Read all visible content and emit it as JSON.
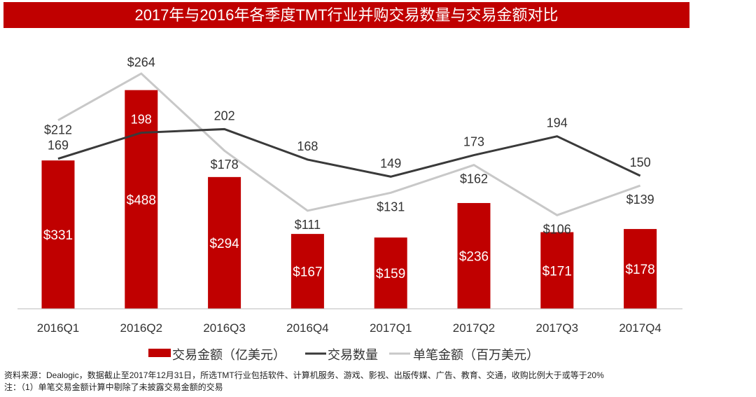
{
  "title": "2017年与2016年各季度TMT行业并购交易数量与交易金额对比",
  "chart_data": {
    "type": "bar+line",
    "title": "2017年与2016年各季度TMT行业并购交易数量与交易金额对比",
    "categories": [
      "2016Q1",
      "2016Q2",
      "2016Q3",
      "2016Q4",
      "2017Q1",
      "2017Q2",
      "2017Q3",
      "2017Q4"
    ],
    "series": [
      {
        "name": "交易金额（亿美元）",
        "type": "bar",
        "color": "#c00000",
        "values": [
          331,
          488,
          294,
          167,
          159,
          236,
          171,
          178
        ],
        "labels": [
          "$331",
          "$488",
          "$294",
          "$167",
          "$159",
          "$236",
          "$171",
          "$178"
        ]
      },
      {
        "name": "交易数量",
        "type": "line",
        "color": "#3a3a3a",
        "values": [
          169,
          198,
          202,
          168,
          149,
          173,
          194,
          150
        ],
        "labels": [
          "169",
          "198",
          "202",
          "168",
          "149",
          "173",
          "194",
          "150"
        ]
      },
      {
        "name": "单笔金额（百万美元）",
        "type": "line",
        "color": "#c8c8c8",
        "values": [
          212,
          264,
          178,
          111,
          131,
          162,
          106,
          139
        ],
        "labels": [
          "$212",
          "$264",
          "$178",
          "$111",
          "$131",
          "$162",
          "$106",
          "$139"
        ]
      }
    ],
    "legend": "bottom",
    "grid": false
  },
  "notes": [
    "资料来源：Dealogic，数据截止至2017年12月31日，所选TMT行业包括软件、计算机服务、游戏、影视、出版传媒、广告、教育、交通，收购比例大于或等于20%",
    "注：（1）单笔交易金额计算中剔除了未披露交易金额的交易"
  ]
}
